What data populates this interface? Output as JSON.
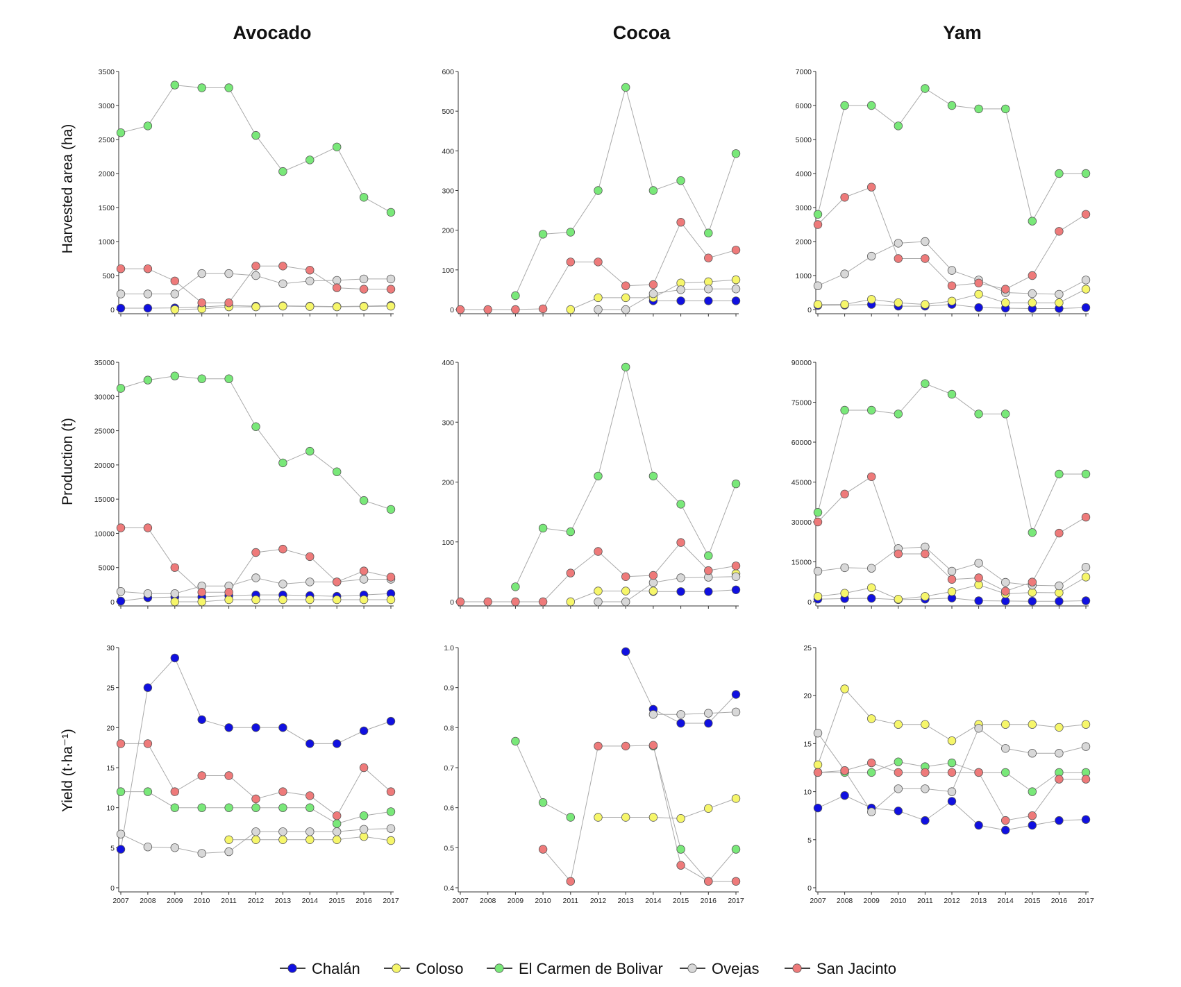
{
  "series_styles": [
    {
      "name": "Chalán",
      "color": "#1010e0"
    },
    {
      "name": "Coloso",
      "color": "#f6f66a"
    },
    {
      "name": "El Carmen de Bolivar",
      "color": "#79e879"
    },
    {
      "name": "Ovejas",
      "color": "#d8d8d8"
    },
    {
      "name": "San Jacinto",
      "color": "#ee7a7a"
    }
  ],
  "columns": [
    "Avocado",
    "Cocoa",
    "Yam"
  ],
  "rows": [
    "Harvested area (ha)",
    "Production (t)",
    "Yield (t·ha⁻¹)"
  ],
  "chart_data": [
    {
      "type": "line",
      "crop": "Avocado",
      "ylabel": "Harvested area (ha)",
      "ylim": [
        0,
        3500
      ],
      "yticks": [
        0,
        500,
        1000,
        1500,
        2000,
        2500,
        3000,
        3500
      ],
      "xticks": [
        "2007",
        "2008",
        "2009",
        "2010",
        "2011",
        "2012",
        "2013",
        "2014",
        "2015",
        "2016",
        "2017"
      ],
      "show_xticks": false,
      "x": [
        2007,
        2008,
        2009,
        2010,
        2011,
        2012,
        2013,
        2014,
        2015,
        2016,
        2017
      ],
      "series": [
        {
          "name": "Chalán",
          "values": [
            20,
            20,
            25,
            40,
            60,
            50,
            55,
            50,
            45,
            50,
            60
          ]
        },
        {
          "name": "Coloso",
          "values": [
            null,
            null,
            0,
            10,
            40,
            40,
            50,
            45,
            40,
            45,
            50
          ]
        },
        {
          "name": "El Carmen de Bolivar",
          "values": [
            2600,
            2700,
            3300,
            3260,
            3260,
            2560,
            2030,
            2200,
            2390,
            1650,
            1430
          ]
        },
        {
          "name": "Ovejas",
          "values": [
            230,
            230,
            230,
            530,
            530,
            500,
            380,
            420,
            430,
            450,
            450
          ]
        },
        {
          "name": "San Jacinto",
          "values": [
            600,
            600,
            420,
            100,
            100,
            640,
            640,
            580,
            320,
            300,
            300
          ]
        }
      ]
    },
    {
      "type": "line",
      "crop": "Cocoa",
      "ylabel": "Harvested area (ha)",
      "ylim": [
        0,
        600
      ],
      "yticks": [
        0,
        100,
        200,
        300,
        400,
        500,
        600
      ],
      "xticks": [
        "2007",
        "2008",
        "2009",
        "2010",
        "2011",
        "2012",
        "2013",
        "2014",
        "2015",
        "2016",
        "2017"
      ],
      "show_xticks": false,
      "x": [
        2007,
        2008,
        2009,
        2010,
        2011,
        2012,
        2013,
        2014,
        2015,
        2016,
        2017
      ],
      "series": [
        {
          "name": "Chalán",
          "values": [
            null,
            null,
            null,
            null,
            null,
            null,
            null,
            22,
            22,
            22,
            22
          ]
        },
        {
          "name": "Coloso",
          "values": [
            null,
            null,
            null,
            null,
            0,
            30,
            30,
            30,
            67,
            70,
            75
          ]
        },
        {
          "name": "El Carmen de Bolivar",
          "values": [
            null,
            null,
            35,
            190,
            195,
            300,
            560,
            300,
            325,
            193,
            393
          ]
        },
        {
          "name": "Ovejas",
          "values": [
            null,
            null,
            null,
            null,
            null,
            0,
            0,
            40,
            50,
            52,
            52
          ]
        },
        {
          "name": "San Jacinto",
          "values": [
            0,
            0,
            0,
            2,
            120,
            120,
            60,
            63,
            220,
            130,
            150
          ]
        }
      ]
    },
    {
      "type": "line",
      "crop": "Yam",
      "ylabel": "Harvested area (ha)",
      "ylim": [
        0,
        7000
      ],
      "yticks": [
        0,
        1000,
        2000,
        3000,
        4000,
        5000,
        6000,
        7000
      ],
      "xticks": [
        "2007",
        "2008",
        "2009",
        "2010",
        "2011",
        "2012",
        "2013",
        "2014",
        "2015",
        "2016",
        "2017"
      ],
      "show_xticks": false,
      "x": [
        2007,
        2008,
        2009,
        2010,
        2011,
        2012,
        2013,
        2014,
        2015,
        2016,
        2017
      ],
      "series": [
        {
          "name": "Chalán",
          "values": [
            120,
            130,
            150,
            100,
            100,
            150,
            60,
            40,
            30,
            30,
            60
          ]
        },
        {
          "name": "Coloso",
          "values": [
            150,
            150,
            300,
            200,
            150,
            250,
            450,
            200,
            200,
            200,
            600
          ]
        },
        {
          "name": "El Carmen de Bolivar",
          "values": [
            2800,
            6000,
            6000,
            5400,
            6500,
            6000,
            5900,
            5900,
            2600,
            4000,
            4000
          ]
        },
        {
          "name": "Ovejas",
          "values": [
            700,
            1050,
            1570,
            1950,
            2000,
            1150,
            870,
            500,
            470,
            450,
            870
          ]
        },
        {
          "name": "San Jacinto",
          "values": [
            2500,
            3300,
            3600,
            1500,
            1500,
            700,
            780,
            600,
            1000,
            2300,
            2800
          ]
        }
      ]
    },
    {
      "type": "line",
      "crop": "Avocado",
      "ylabel": "Production (t)",
      "ylim": [
        0,
        35000
      ],
      "yticks": [
        0,
        5000,
        10000,
        15000,
        20000,
        25000,
        30000,
        35000
      ],
      "xticks": [
        "2007",
        "2008",
        "2009",
        "2010",
        "2011",
        "2012",
        "2013",
        "2014",
        "2015",
        "2016",
        "2017"
      ],
      "show_xticks": false,
      "x": [
        2007,
        2008,
        2009,
        2010,
        2011,
        2012,
        2013,
        2014,
        2015,
        2016,
        2017
      ],
      "series": [
        {
          "name": "Chalán",
          "values": [
            100,
            600,
            700,
            700,
            900,
            1000,
            1000,
            900,
            800,
            1000,
            1200
          ]
        },
        {
          "name": "Coloso",
          "values": [
            null,
            null,
            0,
            0,
            300,
            300,
            300,
            300,
            300,
            300,
            300
          ]
        },
        {
          "name": "El Carmen de Bolivar",
          "values": [
            31200,
            32400,
            33000,
            32600,
            32600,
            25600,
            20300,
            22000,
            19000,
            14800,
            13500
          ]
        },
        {
          "name": "Ovejas",
          "values": [
            1500,
            1200,
            1200,
            2300,
            2300,
            3500,
            2600,
            2900,
            2900,
            3300,
            3300
          ]
        },
        {
          "name": "San Jacinto",
          "values": [
            10800,
            10800,
            5000,
            1400,
            1400,
            7200,
            7700,
            6600,
            2900,
            4500,
            3600
          ]
        }
      ]
    },
    {
      "type": "line",
      "crop": "Cocoa",
      "ylabel": "Production (t)",
      "ylim": [
        0,
        400
      ],
      "yticks": [
        0,
        100,
        200,
        300,
        400
      ],
      "xticks": [
        "2007",
        "2008",
        "2009",
        "2010",
        "2011",
        "2012",
        "2013",
        "2014",
        "2015",
        "2016",
        "2017"
      ],
      "show_xticks": false,
      "x": [
        2007,
        2008,
        2009,
        2010,
        2011,
        2012,
        2013,
        2014,
        2015,
        2016,
        2017
      ],
      "series": [
        {
          "name": "Chalán",
          "values": [
            null,
            null,
            null,
            null,
            null,
            null,
            null,
            17,
            17,
            17,
            20
          ]
        },
        {
          "name": "Coloso",
          "values": [
            null,
            null,
            null,
            null,
            0,
            18,
            18,
            18,
            null,
            null,
            47
          ]
        },
        {
          "name": "El Carmen de Bolivar",
          "values": [
            null,
            null,
            25,
            123,
            117,
            210,
            392,
            210,
            163,
            77,
            197
          ]
        },
        {
          "name": "Ovejas",
          "values": [
            null,
            null,
            null,
            null,
            null,
            0,
            0,
            32,
            40,
            41,
            42
          ]
        },
        {
          "name": "San Jacinto",
          "values": [
            0,
            0,
            0,
            0,
            48,
            84,
            42,
            44,
            99,
            52,
            60
          ]
        }
      ]
    },
    {
      "type": "line",
      "crop": "Yam",
      "ylabel": "Production (t)",
      "ylim": [
        0,
        90000
      ],
      "yticks": [
        0,
        15000,
        30000,
        45000,
        60000,
        75000,
        90000
      ],
      "xticks": [
        "2007",
        "2008",
        "2009",
        "2010",
        "2011",
        "2012",
        "2013",
        "2014",
        "2015",
        "2016",
        "2017"
      ],
      "show_xticks": false,
      "x": [
        2007,
        2008,
        2009,
        2010,
        2011,
        2012,
        2013,
        2014,
        2015,
        2016,
        2017
      ],
      "series": [
        {
          "name": "Chalán",
          "values": [
            1000,
            1200,
            1300,
            800,
            1000,
            1400,
            400,
            300,
            200,
            200,
            400
          ]
        },
        {
          "name": "Coloso",
          "values": [
            2000,
            3200,
            5300,
            1000,
            2000,
            3800,
            6400,
            3000,
            3500,
            3400,
            9300
          ]
        },
        {
          "name": "El Carmen de Bolivar",
          "values": [
            33600,
            72000,
            72000,
            70600,
            82000,
            78000,
            70600,
            70600,
            26000,
            48000,
            48000
          ]
        },
        {
          "name": "Ovejas",
          "values": [
            11500,
            12800,
            12600,
            20000,
            20600,
            11500,
            14500,
            7300,
            6200,
            6000,
            13000
          ]
        },
        {
          "name": "San Jacinto",
          "values": [
            30000,
            40500,
            47000,
            18000,
            18000,
            8400,
            9000,
            4000,
            7400,
            25800,
            31800
          ]
        }
      ]
    },
    {
      "type": "line",
      "crop": "Avocado",
      "ylabel": "Yield (t·ha⁻¹)",
      "ylim": [
        0,
        30
      ],
      "yticks": [
        0,
        5,
        10,
        15,
        20,
        25,
        30
      ],
      "xticks": [
        "2007",
        "2008",
        "2009",
        "2010",
        "2011",
        "2012",
        "2013",
        "2014",
        "2015",
        "2016",
        "2017"
      ],
      "show_xticks": true,
      "x": [
        2007,
        2008,
        2009,
        2010,
        2011,
        2012,
        2013,
        2014,
        2015,
        2016,
        2017
      ],
      "series": [
        {
          "name": "Chalán",
          "values": [
            4.8,
            25,
            28.7,
            21,
            20,
            20,
            20,
            18,
            18,
            19.6,
            20.8
          ]
        },
        {
          "name": "Coloso",
          "values": [
            null,
            null,
            null,
            null,
            6,
            6,
            6,
            6,
            6,
            6.4,
            5.9
          ]
        },
        {
          "name": "El Carmen de Bolivar",
          "values": [
            12,
            12,
            10,
            10,
            10,
            10,
            10,
            10,
            8,
            9,
            9.5
          ]
        },
        {
          "name": "Ovejas",
          "values": [
            6.7,
            5.1,
            5,
            4.3,
            4.5,
            7,
            7,
            7,
            7,
            7.3,
            7.4
          ]
        },
        {
          "name": "San Jacinto",
          "values": [
            18,
            18,
            12,
            14,
            14,
            11.1,
            12,
            11.5,
            9,
            15,
            12
          ]
        }
      ]
    },
    {
      "type": "line",
      "crop": "Cocoa",
      "ylabel": "Yield (t·ha⁻¹)",
      "ylim": [
        0.4,
        1.0
      ],
      "yticks": [
        0.4,
        0.5,
        0.6,
        0.7,
        0.8,
        0.9,
        1.0
      ],
      "ytick_labels": [
        "0.4",
        "0.5",
        "0.6",
        "0.7",
        "0.8",
        "0.9",
        "1.0"
      ],
      "xticks": [
        "2007",
        "2008",
        "2009",
        "2010",
        "2011",
        "2012",
        "2013",
        "2014",
        "2015",
        "2016",
        "2017"
      ],
      "show_xticks": true,
      "x": [
        2007,
        2008,
        2009,
        2010,
        2011,
        2012,
        2013,
        2014,
        2015,
        2016,
        2017
      ],
      "series": [
        {
          "name": "Chalán",
          "values": [
            null,
            null,
            null,
            null,
            null,
            null,
            0.99,
            0.846,
            0.811,
            0.811,
            0.883
          ]
        },
        {
          "name": "Coloso",
          "values": [
            null,
            null,
            null,
            null,
            null,
            0.576,
            0.576,
            0.576,
            0.573,
            0.598,
            0.623
          ]
        },
        {
          "name": "El Carmen de Bolivar",
          "values": [
            null,
            null,
            0.766,
            0.613,
            0.576,
            null,
            null,
            0.754,
            0.496,
            0.416,
            0.496
          ]
        },
        {
          "name": "Ovejas",
          "values": [
            null,
            null,
            null,
            null,
            null,
            null,
            null,
            0.833,
            0.833,
            0.836,
            0.839
          ]
        },
        {
          "name": "San Jacinto",
          "values": [
            null,
            null,
            null,
            0.496,
            0.416,
            0.754,
            0.754,
            0.756,
            0.456,
            0.416,
            0.416
          ]
        }
      ]
    },
    {
      "type": "line",
      "crop": "Yam",
      "ylabel": "Yield (t·ha⁻¹)",
      "ylim": [
        0,
        25
      ],
      "yticks": [
        0,
        5,
        10,
        15,
        20,
        25
      ],
      "xticks": [
        "2007",
        "2008",
        "2009",
        "2010",
        "2011",
        "2012",
        "2013",
        "2014",
        "2015",
        "2016",
        "2017"
      ],
      "show_xticks": true,
      "x": [
        2007,
        2008,
        2009,
        2010,
        2011,
        2012,
        2013,
        2014,
        2015,
        2016,
        2017
      ],
      "series": [
        {
          "name": "Chalán",
          "values": [
            8.3,
            9.6,
            8.3,
            8,
            7,
            9,
            6.5,
            6,
            6.5,
            7,
            7.1
          ]
        },
        {
          "name": "Coloso",
          "values": [
            12.8,
            20.7,
            17.6,
            17,
            17,
            15.3,
            17,
            17,
            17,
            16.7,
            17
          ]
        },
        {
          "name": "El Carmen de Bolivar",
          "values": [
            12,
            12,
            12,
            13.1,
            12.6,
            13,
            12,
            12,
            10,
            12,
            12
          ]
        },
        {
          "name": "Ovejas",
          "values": [
            16.1,
            12.2,
            7.9,
            10.3,
            10.3,
            10,
            16.6,
            14.5,
            14,
            14,
            14.7
          ]
        },
        {
          "name": "San Jacinto",
          "values": [
            12,
            12.2,
            13,
            12,
            12,
            12,
            12,
            7,
            7.5,
            11.3,
            11.3
          ]
        }
      ]
    }
  ]
}
